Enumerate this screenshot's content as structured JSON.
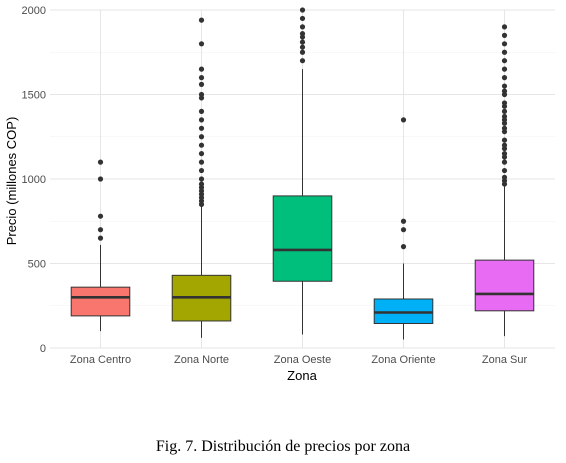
{
  "caption": "Fig. 7.  Distribución de precios por zona",
  "chart_data": {
    "type": "boxplot",
    "title": "",
    "xlabel": "Zona",
    "ylabel": "Precio (millones COP)",
    "ylim": [
      0,
      2000
    ],
    "yticks": [
      0,
      500,
      1000,
      1500,
      2000
    ],
    "ytick_labels": [
      "0",
      "500",
      "1000",
      "1500",
      "2000"
    ],
    "grid": true,
    "legend": "none",
    "categories": [
      "Zona Centro",
      "Zona Norte",
      "Zona Oeste",
      "Zona Oriente",
      "Zona Sur"
    ],
    "boxes": [
      {
        "category": "Zona Centro",
        "color": "#F8766D",
        "whisker_low": 100,
        "q1": 190,
        "median": 300,
        "q3": 360,
        "whisker_high": 610,
        "outliers": [
          650,
          700,
          780,
          1000,
          1100
        ]
      },
      {
        "category": "Zona Norte",
        "color": "#A3A500",
        "whisker_low": 60,
        "q1": 160,
        "median": 300,
        "q3": 430,
        "whisker_high": 840,
        "outliers": [
          850,
          870,
          890,
          910,
          930,
          950,
          970,
          1000,
          1050,
          1100,
          1150,
          1200,
          1250,
          1300,
          1350,
          1400,
          1480,
          1500,
          1560,
          1600,
          1650,
          1800,
          1940
        ]
      },
      {
        "category": "Zona Oeste",
        "color": "#00BF7D",
        "whisker_low": 80,
        "q1": 395,
        "median": 580,
        "q3": 900,
        "whisker_high": 1650,
        "outliers": [
          1700,
          1750,
          1780,
          1810,
          1840,
          1860,
          1900,
          1950,
          2000
        ]
      },
      {
        "category": "Zona Oriente",
        "color": "#00B0F6",
        "whisker_low": 50,
        "q1": 145,
        "median": 210,
        "q3": 290,
        "whisker_high": 500,
        "outliers": [
          600,
          700,
          750,
          1350
        ]
      },
      {
        "category": "Zona Sur",
        "color": "#E76BF3",
        "whisker_low": 70,
        "q1": 220,
        "median": 320,
        "q3": 520,
        "whisker_high": 960,
        "outliers": [
          970,
          990,
          1010,
          1050,
          1100,
          1130,
          1150,
          1180,
          1200,
          1230,
          1280,
          1300,
          1330,
          1350,
          1370,
          1400,
          1430,
          1450,
          1500,
          1520,
          1550,
          1600,
          1650,
          1700,
          1750,
          1800,
          1850,
          1900
        ]
      }
    ]
  }
}
